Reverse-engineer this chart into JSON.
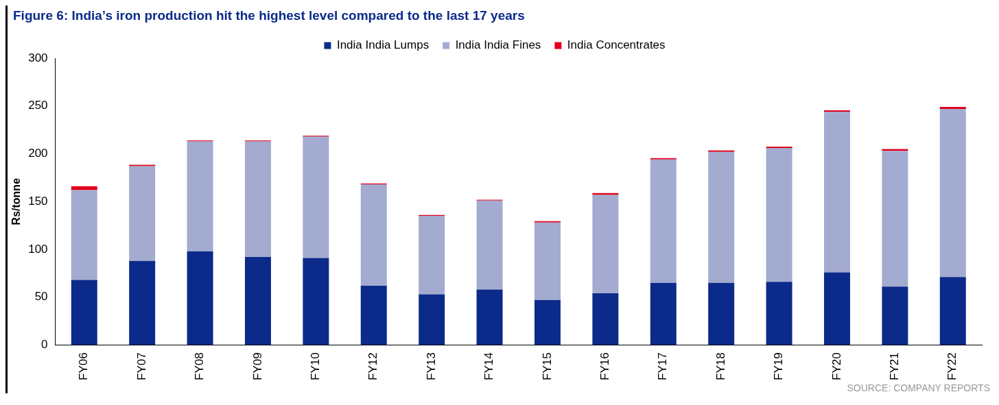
{
  "chart_data": {
    "type": "bar",
    "title": "Figure 6: India’s iron production hit the highest level compared to the last 17 years",
    "ylabel": "Rs/tonne",
    "categories": [
      "FY06",
      "FY07",
      "FY08",
      "FY09",
      "FY10",
      "FY12",
      "FY13",
      "FY14",
      "FY15",
      "FY16",
      "FY17",
      "FY18",
      "FY19",
      "FY20",
      "FY21",
      "FY22"
    ],
    "series": [
      {
        "name": "India India Lumps",
        "color": "#0b2a8a",
        "values": [
          68,
          88,
          98,
          92,
          91,
          62,
          53,
          58,
          47,
          54,
          65,
          65,
          66,
          76,
          61,
          71
        ]
      },
      {
        "name": "India India Fines",
        "color": "#a3abd0",
        "values": [
          94,
          99,
          115,
          121,
          127,
          106,
          82,
          93,
          81,
          103,
          129,
          137,
          140,
          168,
          142,
          176
        ]
      },
      {
        "name": "India Concentrates",
        "color": "#e0001b",
        "values": [
          4,
          1.5,
          1,
          1,
          1,
          1,
          1,
          1,
          1.5,
          2,
          1.5,
          1.5,
          1.5,
          1.5,
          2,
          2
        ]
      }
    ],
    "stacked": true,
    "ylim": [
      0,
      300
    ],
    "yticks": [
      0,
      50,
      100,
      150,
      200,
      250,
      300
    ],
    "grid": false,
    "legend": "top",
    "annotations": [
      "SOURCE: COMPANY REPORTS"
    ]
  }
}
